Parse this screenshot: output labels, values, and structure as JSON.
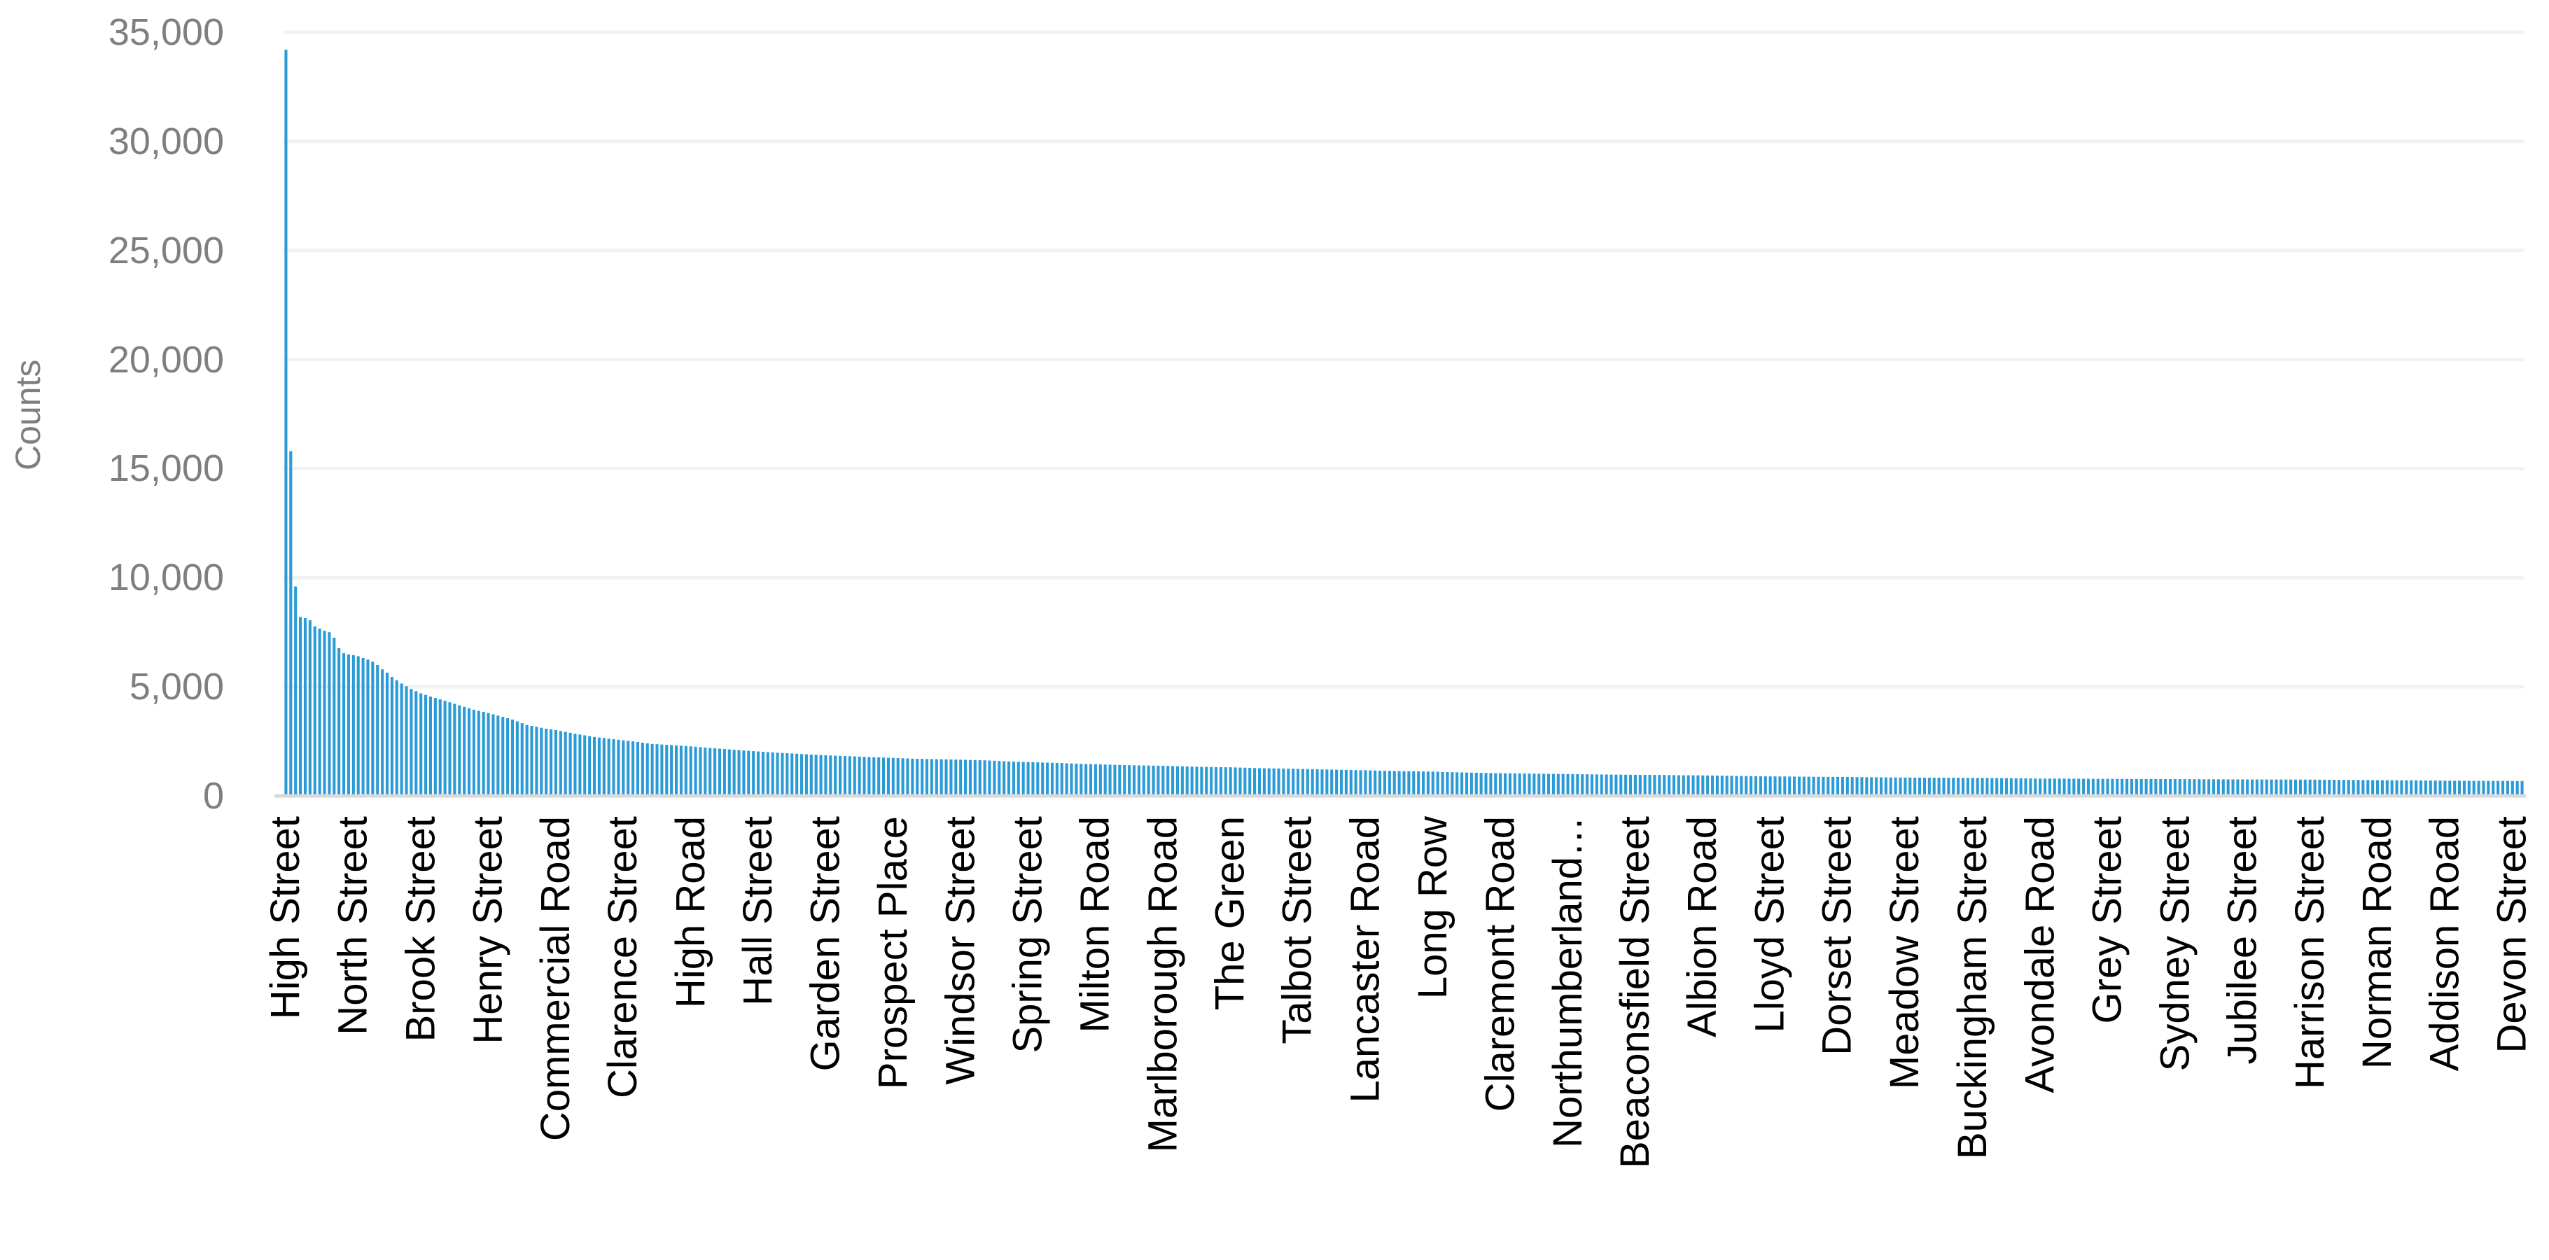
{
  "chart_data": {
    "type": "bar",
    "title": "",
    "xlabel": "",
    "ylabel": "Counts",
    "legend": "none",
    "grid": "horizontal",
    "ylim": [
      0,
      35000
    ],
    "y_ticks": [
      "35,000",
      "30,000",
      "25,000",
      "20,000",
      "15,000",
      "10,000",
      "5,000",
      "0"
    ],
    "y_tick_values": [
      35000,
      30000,
      25000,
      20000,
      15000,
      10000,
      5000,
      0
    ],
    "n_bars": 465,
    "label_interval": 14,
    "categories": [
      "High Street",
      "North Street",
      "Brook Street",
      "Henry Street",
      "Commercial Road",
      "Clarence Street",
      "High Road",
      "Hall Street",
      "Garden Street",
      "Prospect Place",
      "Windsor Street",
      "Spring Street",
      "Milton Road",
      "Marlborough Road",
      "The Green",
      "Talbot Street",
      "Lancaster Road",
      "Long Row",
      "Claremont Road",
      "Northumberland…",
      "Beaconsfield Street",
      "Albion Road",
      "Lloyd Street",
      "Dorset Street",
      "Meadow Street",
      "Buckingham Street",
      "Avondale Road",
      "Grey Street",
      "Sydney Street",
      "Jubilee Street",
      "Harrison Street",
      "Norman Road",
      "Addison Road",
      "Devon Street"
    ],
    "label_values": [
      34200,
      6450,
      4700,
      3800,
      3020,
      2575,
      2270,
      2043,
      1860,
      1740,
      1660,
      1550,
      1450,
      1380,
      1310,
      1240,
      1175,
      1115,
      1040,
      1000,
      965,
      940,
      895,
      870,
      840,
      825,
      795,
      780,
      770,
      755,
      745,
      720,
      700,
      685
    ],
    "curve_anchors": [
      [
        0,
        34200
      ],
      [
        1,
        15800
      ],
      [
        2,
        9600
      ],
      [
        3,
        8200
      ],
      [
        4,
        8150
      ],
      [
        5,
        8050
      ],
      [
        6,
        7770
      ],
      [
        7,
        7670
      ],
      [
        8,
        7570
      ],
      [
        9,
        7500
      ],
      [
        10,
        7250
      ],
      [
        11,
        6770
      ],
      [
        12,
        6540
      ],
      [
        13,
        6480
      ],
      [
        14,
        6450
      ],
      [
        15,
        6400
      ],
      [
        16,
        6320
      ],
      [
        17,
        6250
      ],
      [
        18,
        6150
      ],
      [
        19,
        6000
      ],
      [
        20,
        5800
      ],
      [
        21,
        5650
      ],
      [
        22,
        5450
      ],
      [
        23,
        5300
      ],
      [
        24,
        5150
      ],
      [
        26,
        4900
      ],
      [
        28,
        4700
      ],
      [
        30,
        4550
      ],
      [
        33,
        4360
      ],
      [
        36,
        4150
      ],
      [
        39,
        3950
      ],
      [
        42,
        3800
      ],
      [
        45,
        3620
      ],
      [
        47,
        3500
      ],
      [
        50,
        3250
      ],
      [
        54,
        3080
      ],
      [
        56,
        3020
      ],
      [
        60,
        2850
      ],
      [
        64,
        2700
      ],
      [
        68,
        2600
      ],
      [
        72,
        2500
      ],
      [
        76,
        2380
      ],
      [
        80,
        2330
      ],
      [
        84,
        2270
      ],
      [
        88,
        2200
      ],
      [
        92,
        2130
      ],
      [
        97,
        2050
      ],
      [
        102,
        1980
      ],
      [
        107,
        1920
      ],
      [
        112,
        1860
      ],
      [
        117,
        1820
      ],
      [
        121,
        1780
      ],
      [
        126,
        1740
      ],
      [
        131,
        1700
      ],
      [
        136,
        1680
      ],
      [
        140,
        1660
      ],
      [
        145,
        1630
      ],
      [
        150,
        1580
      ],
      [
        154,
        1550
      ],
      [
        160,
        1510
      ],
      [
        165,
        1470
      ],
      [
        168,
        1450
      ],
      [
        174,
        1410
      ],
      [
        179,
        1390
      ],
      [
        182,
        1380
      ],
      [
        188,
        1340
      ],
      [
        193,
        1320
      ],
      [
        196,
        1310
      ],
      [
        202,
        1270
      ],
      [
        208,
        1250
      ],
      [
        210,
        1240
      ],
      [
        216,
        1210
      ],
      [
        222,
        1180
      ],
      [
        224,
        1175
      ],
      [
        230,
        1140
      ],
      [
        238,
        1115
      ],
      [
        241,
        1090
      ],
      [
        247,
        1060
      ],
      [
        252,
        1040
      ],
      [
        256,
        1030
      ],
      [
        261,
        1015
      ],
      [
        266,
        1000
      ],
      [
        270,
        990
      ],
      [
        275,
        975
      ],
      [
        280,
        965
      ],
      [
        285,
        960
      ],
      [
        290,
        945
      ],
      [
        294,
        940
      ],
      [
        300,
        920
      ],
      [
        304,
        905
      ],
      [
        308,
        895
      ],
      [
        313,
        885
      ],
      [
        318,
        875
      ],
      [
        322,
        870
      ],
      [
        328,
        855
      ],
      [
        333,
        845
      ],
      [
        336,
        840
      ],
      [
        341,
        835
      ],
      [
        347,
        830
      ],
      [
        350,
        825
      ],
      [
        356,
        815
      ],
      [
        362,
        800
      ],
      [
        364,
        795
      ],
      [
        370,
        790
      ],
      [
        375,
        782
      ],
      [
        378,
        780
      ],
      [
        384,
        775
      ],
      [
        392,
        770
      ],
      [
        399,
        760
      ],
      [
        406,
        755
      ],
      [
        414,
        750
      ],
      [
        420,
        745
      ],
      [
        427,
        735
      ],
      [
        434,
        720
      ],
      [
        441,
        715
      ],
      [
        448,
        700
      ],
      [
        455,
        690
      ],
      [
        462,
        685
      ],
      [
        464,
        680
      ]
    ]
  },
  "colors": {
    "bar": "#2B9BD7",
    "grid": "#F2F2F2",
    "axis_line": "#D9D9D9",
    "y_text": "#7F7F7F",
    "x_text": "#000000",
    "background": "#FFFFFF"
  }
}
